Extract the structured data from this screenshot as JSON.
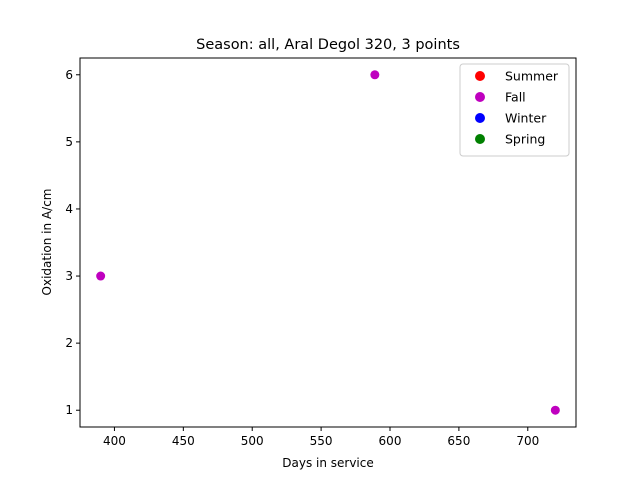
{
  "chart_data": {
    "type": "scatter",
    "title": "Season: all, Aral Degol 320, 3 points",
    "xlabel": "Days in service",
    "ylabel": "Oxidation in A/cm",
    "xlim": [
      375,
      735
    ],
    "ylim": [
      0.75,
      6.25
    ],
    "xticks": [
      400,
      450,
      500,
      550,
      600,
      650,
      700
    ],
    "yticks": [
      1,
      2,
      3,
      4,
      5,
      6
    ],
    "grid": false,
    "legend_position": "top-right",
    "legend": [
      {
        "name": "Summer",
        "color": "#ff0000"
      },
      {
        "name": "Fall",
        "color": "#bf00bf"
      },
      {
        "name": "Winter",
        "color": "#0000ff"
      },
      {
        "name": "Spring",
        "color": "#008000"
      }
    ],
    "series": [
      {
        "name": "Fall",
        "color": "#bf00bf",
        "x": [
          390,
          589,
          720
        ],
        "y": [
          3,
          6,
          1
        ]
      }
    ]
  }
}
